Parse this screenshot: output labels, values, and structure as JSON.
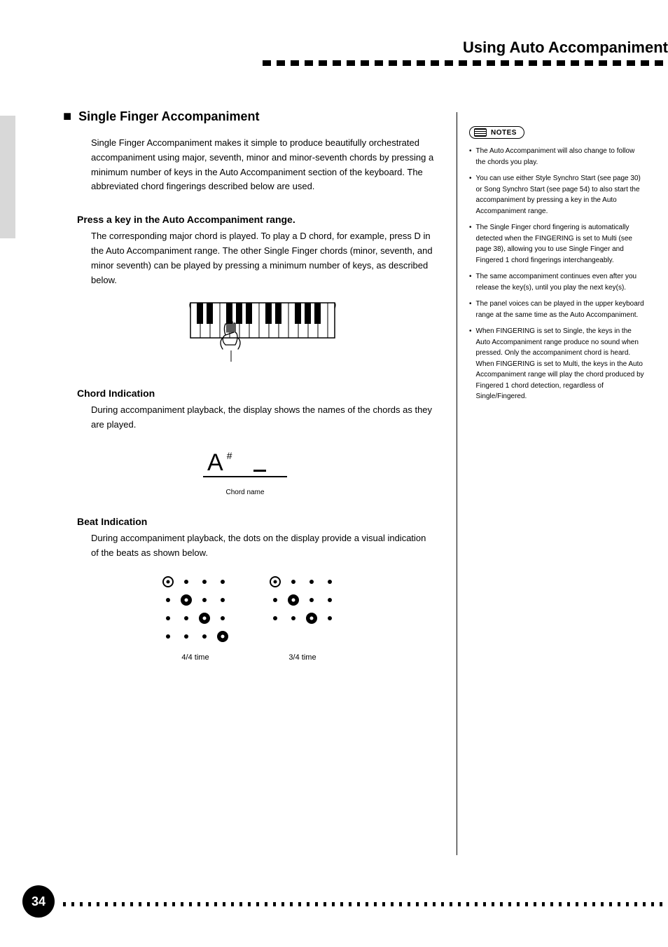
{
  "header": {
    "title": "Using Auto Accompaniment"
  },
  "sections": {
    "main_title_bullet": "■",
    "main_title": "Single Finger Accompaniment",
    "intro_paragraph": "Single Finger Accompaniment makes it simple to produce beautifully orchestrated accompaniment using major, seventh, minor and minor-seventh chords by pressing a minimum number of keys in the Auto Accompaniment section of the keyboard. The abbreviated chord fingerings described below are used.",
    "press_key": {
      "heading": "Press a key in the Auto Accompaniment range.",
      "text": "The corresponding major chord is played. To play a D chord, for example, press D in the Auto Accompaniment range. The other Single Finger chords (minor, seventh, and minor seventh) can be played by pressing a minimum number of keys, as described below."
    },
    "chord_indication": {
      "heading": "Chord Indication",
      "text": "During accompaniment playback, the display shows the names of the chords as they are played.",
      "lcd_value": "A",
      "lcd_sharp": "#",
      "lcd_caption": "Chord name"
    },
    "beat_indication": {
      "heading": "Beat Indication",
      "text": "During accompaniment playback, the dots on the display provide a visual indication of the beats as shown below.",
      "beat_4_4_label": "4/4 time",
      "beat_3_4_label": "3/4 time"
    }
  },
  "notes": {
    "badge_label": "NOTES",
    "items": [
      "The Auto Accompaniment will also change to follow the chords you play.",
      "You can use either Style Synchro Start (see page 30) or Song Synchro Start (see page 54) to also start the accompaniment by pressing a key in the Auto Accompaniment range.",
      "The Single Finger chord fingering is automatically detected when the FINGERING is set to Multi (see page 38), allowing you to use Single Finger and Fingered 1 chord fingerings interchangeably.",
      "The same accompaniment continues even after you release the key(s), until you play the next key(s).",
      "The panel voices can be played in the upper keyboard range at the same time as the Auto Accompaniment.",
      "When FINGERING is set to Single, the keys in the Auto Accompaniment range produce no sound when pressed. Only the accompaniment chord is heard. When FINGERING is set to Multi, the keys in the Auto Accompaniment range will play the chord produced by Fingered 1 chord detection, regardless of Single/Fingered."
    ]
  },
  "footer": {
    "page_number": "34"
  },
  "colors": {
    "text": "#000000",
    "background": "#ffffff",
    "tab": "#d8d8d8"
  }
}
